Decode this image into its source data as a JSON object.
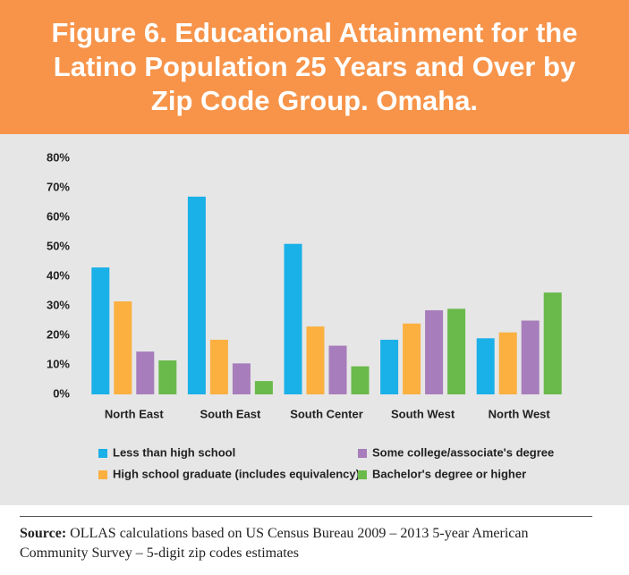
{
  "chart_data": {
    "type": "bar",
    "title": "Figure 6. Educational Attainment for the Latino Population 25 Years and Over by Zip Code Group. Omaha.",
    "categories": [
      "North East",
      "South East",
      "South Center",
      "South West",
      "North West"
    ],
    "series": [
      {
        "name": "Less than high school",
        "color": "#1ab0e8",
        "values": [
          43,
          67,
          51,
          18.5,
          19
        ]
      },
      {
        "name": "High school graduate (includes equivalency)",
        "color": "#fbb040",
        "values": [
          31.5,
          18.5,
          23,
          24,
          21
        ]
      },
      {
        "name": "Some college/associate's degree",
        "color": "#a77dbb",
        "values": [
          14.5,
          10.5,
          16.5,
          28.5,
          25
        ]
      },
      {
        "name": "Bachelor's degree or higher",
        "color": "#6ab94b",
        "values": [
          11.5,
          4.5,
          9.5,
          29,
          34.5
        ]
      }
    ],
    "ylim": [
      0,
      80
    ],
    "yticks": [
      {
        "value": 0,
        "label": "0%"
      },
      {
        "value": 10,
        "label": "10%"
      },
      {
        "value": 20,
        "label": "20%"
      },
      {
        "value": 30,
        "label": "30%"
      },
      {
        "value": 40,
        "label": "40%"
      },
      {
        "value": 50,
        "label": "50%"
      },
      {
        "value": 60,
        "label": "60%"
      },
      {
        "value": 70,
        "label": "70%"
      },
      {
        "value": 80,
        "label": "80%"
      }
    ],
    "grid": false
  },
  "source": {
    "label": "Source:",
    "text": "OLLAS calculations based on US Census Bureau 2009 – 2013 5-year American Community Survey – 5-digit zip codes estimates"
  }
}
